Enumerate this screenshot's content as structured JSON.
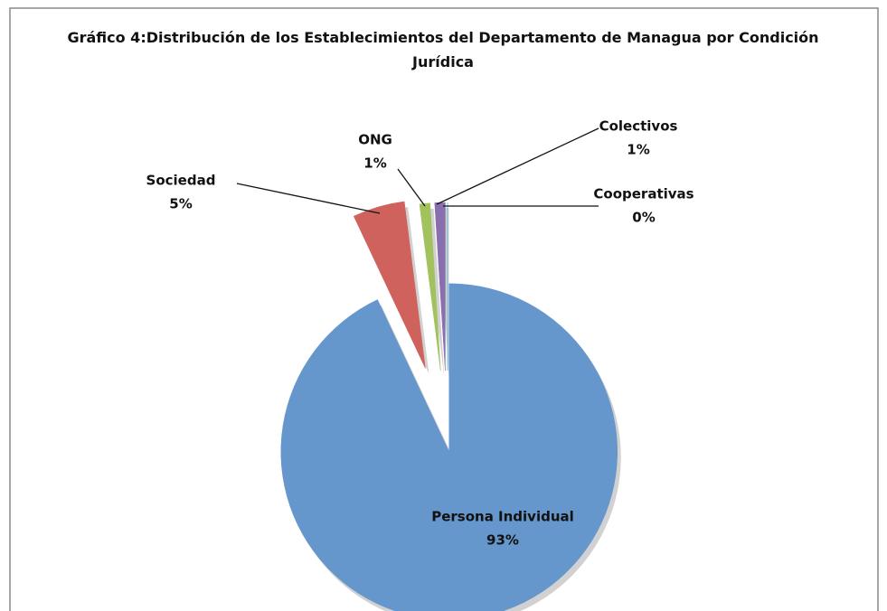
{
  "chart_data": {
    "type": "pie",
    "title": "Gráfico 4:Distribución de los Establecimientos del Departamento de Managua por Condición Jurídica",
    "categories": [
      "Persona Individual",
      "Sociedad",
      "ONG",
      "Colectivos",
      "Cooperativas"
    ],
    "values": [
      93,
      5,
      1,
      1,
      0
    ],
    "value_labels": [
      "93%",
      "5%",
      "1%",
      "1%",
      "0%"
    ],
    "colors": [
      "#6596cc",
      "#d0625d",
      "#a2c25e",
      "#8a6fae",
      "#52b3cd"
    ]
  }
}
